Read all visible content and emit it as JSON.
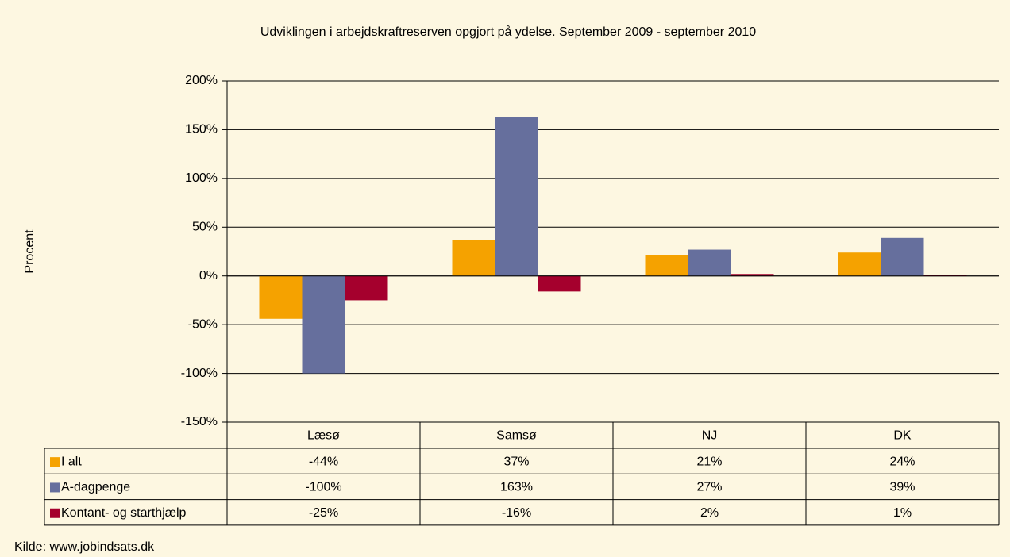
{
  "chart_data": {
    "type": "bar",
    "title": "Udviklingen i arbejdskraftreserven opgjort på ydelse. September 2009 - september 2010",
    "y_label": "Procent",
    "source": "Kilde: www.jobindsats.dk",
    "categories": [
      "Læsø",
      "Samsø",
      "NJ",
      "DK"
    ],
    "series": [
      {
        "name": "I alt",
        "color": "#f5a200",
        "values": [
          -44,
          37,
          21,
          24
        ],
        "value_labels": [
          "-44%",
          "37%",
          "21%",
          "24%"
        ]
      },
      {
        "name": "A-dagpenge",
        "color": "#666f9d",
        "values": [
          -100,
          163,
          27,
          39
        ],
        "value_labels": [
          "-100%",
          "163%",
          "27%",
          "39%"
        ]
      },
      {
        "name": "Kontant- og starthjælp",
        "color": "#a5002d",
        "values": [
          -25,
          -16,
          2,
          1
        ],
        "value_labels": [
          "-25%",
          "-16%",
          "2%",
          "1%"
        ]
      }
    ],
    "ylim": [
      -150,
      200
    ],
    "yticks": [
      {
        "value": -150,
        "label": "-150%"
      },
      {
        "value": -100,
        "label": "-100%"
      },
      {
        "value": -50,
        "label": "-50%"
      },
      {
        "value": 0,
        "label": "0%"
      },
      {
        "value": 50,
        "label": "50%"
      },
      {
        "value": 100,
        "label": "100%"
      },
      {
        "value": 150,
        "label": "150%"
      },
      {
        "value": 200,
        "label": "200%"
      }
    ],
    "grid": true
  }
}
